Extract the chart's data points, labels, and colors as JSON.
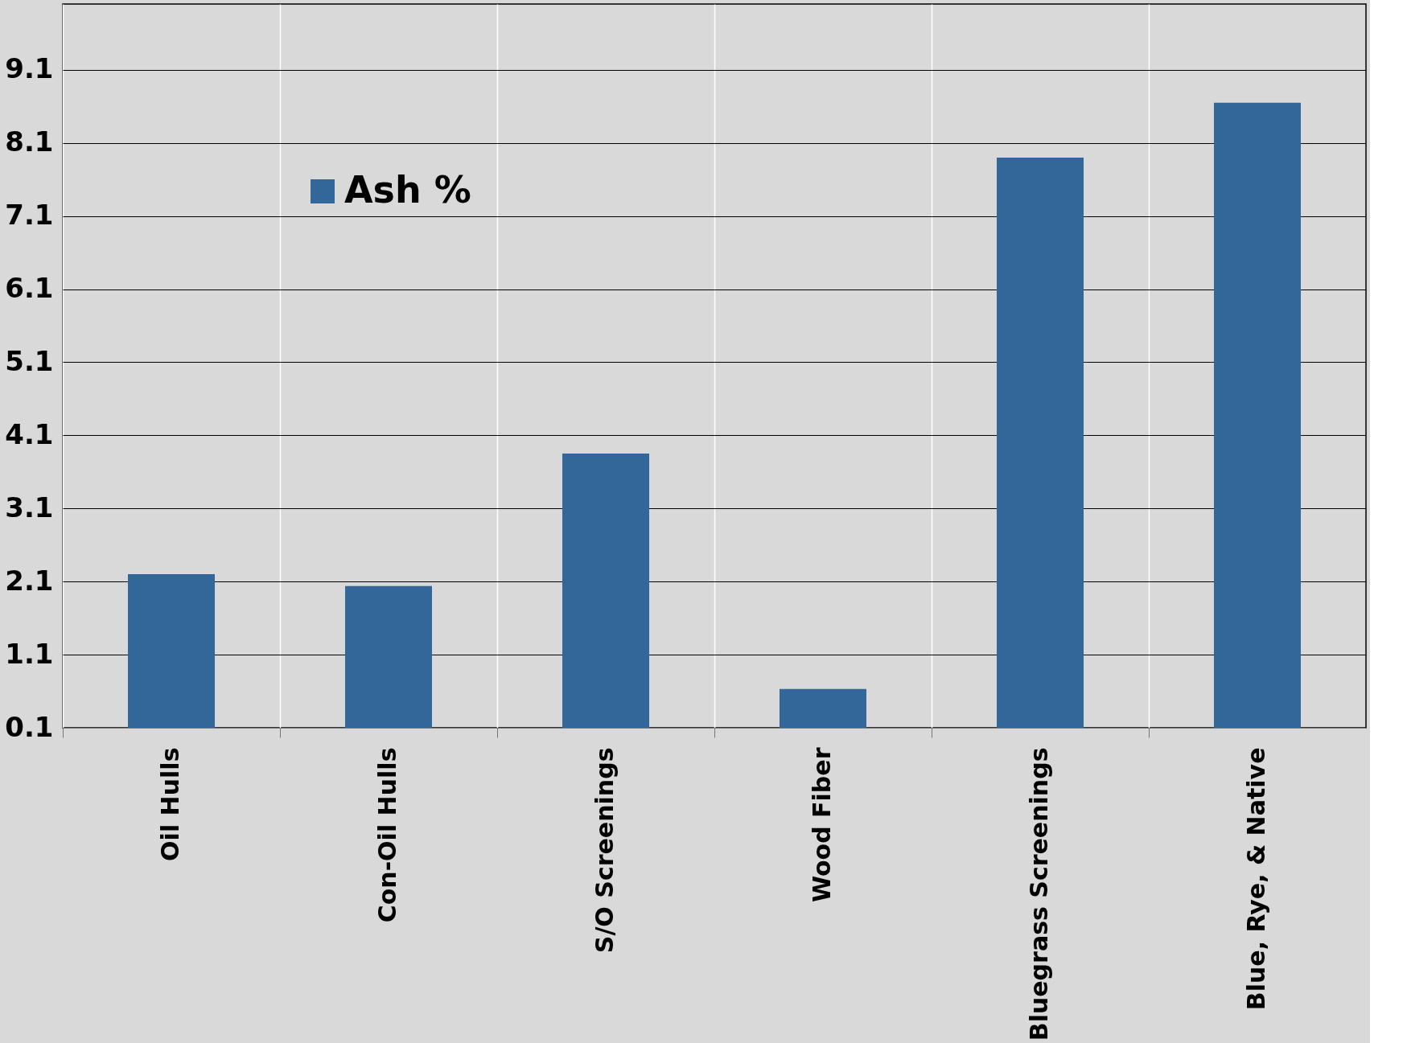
{
  "chart_data": {
    "type": "bar",
    "categories": [
      "Oil Hulls",
      "Con-Oil Hulls",
      "S/O Screenings",
      "Wood Fiber",
      "Bluegrass Screenings",
      "Blue, Rye, & Native"
    ],
    "series": [
      {
        "name": "Ash %",
        "color": "#336699",
        "values": [
          2.2,
          2.04,
          3.85,
          0.63,
          7.9,
          8.65
        ]
      }
    ],
    "ylim": [
      0.1,
      10.0
    ],
    "yticks": [
      0.1,
      1.1,
      2.1,
      3.1,
      4.1,
      5.1,
      6.1,
      7.1,
      8.1,
      9.1
    ],
    "grid": true,
    "legend": "top left"
  }
}
